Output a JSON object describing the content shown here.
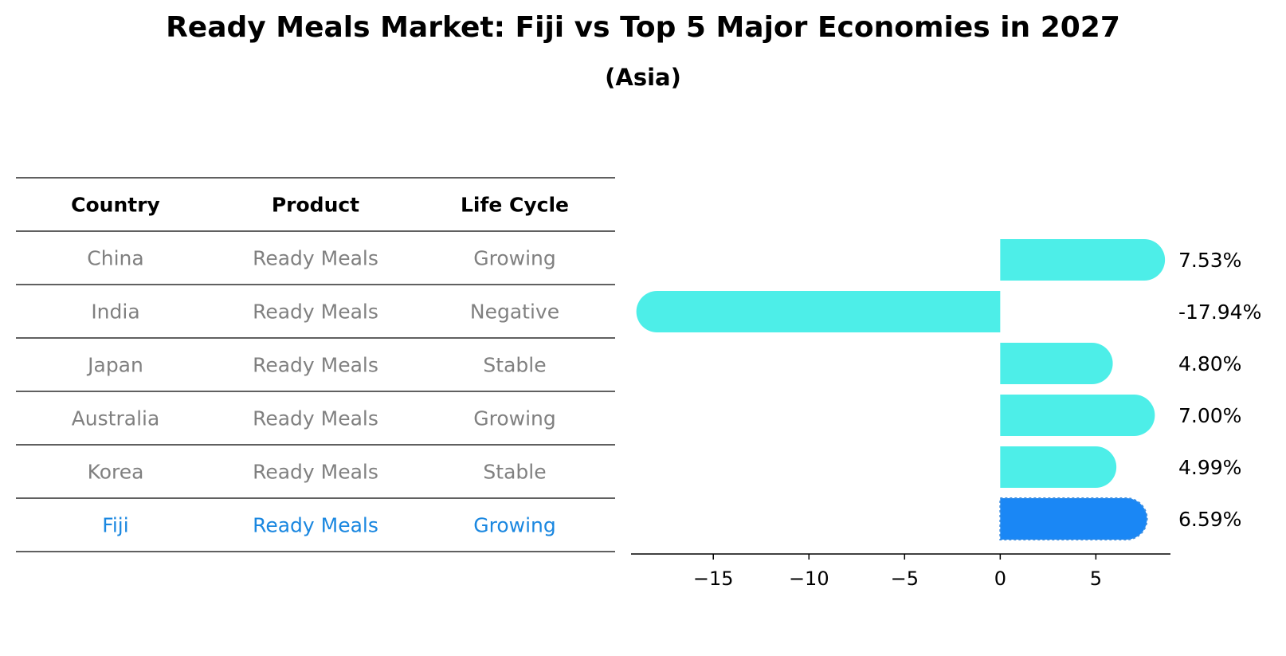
{
  "header": {
    "title": "Ready Meals Market: Fiji vs Top 5 Major Economies in 2027",
    "subtitle": "(Asia)"
  },
  "table": {
    "columns": [
      "Country",
      "Product",
      "Life Cycle"
    ],
    "rows": [
      [
        "China",
        "Ready Meals",
        "Growing"
      ],
      [
        "India",
        "Ready Meals",
        "Negative"
      ],
      [
        "Japan",
        "Ready Meals",
        "Stable"
      ],
      [
        "Australia",
        "Ready Meals",
        "Growing"
      ],
      [
        "Korea",
        "Ready Meals",
        "Stable"
      ],
      [
        "Fiji",
        "Ready Meals",
        "Growing"
      ]
    ],
    "highlight_row": 5,
    "colors": {
      "text": "#808080",
      "highlight": "#1a87e0",
      "header": "#000000"
    }
  },
  "chart_data": {
    "type": "bar",
    "orientation": "horizontal",
    "categories": [
      "China",
      "India",
      "Japan",
      "Australia",
      "Korea",
      "Fiji"
    ],
    "values": [
      7.53,
      -17.94,
      4.8,
      7.0,
      4.99,
      6.59
    ],
    "value_labels": [
      "7.53%",
      "-17.94%",
      "4.80%",
      "7.00%",
      "4.99%",
      "6.59%"
    ],
    "xlim": [
      -19.3,
      8.9
    ],
    "xticks": [
      -15,
      -10,
      -5,
      0,
      5
    ],
    "xtick_labels": [
      "−15",
      "−10",
      "−5",
      "0",
      "5"
    ],
    "highlight_index": 5,
    "colors": {
      "bar": "#4deee8",
      "highlight": "#1a87f5"
    },
    "grid": false
  }
}
